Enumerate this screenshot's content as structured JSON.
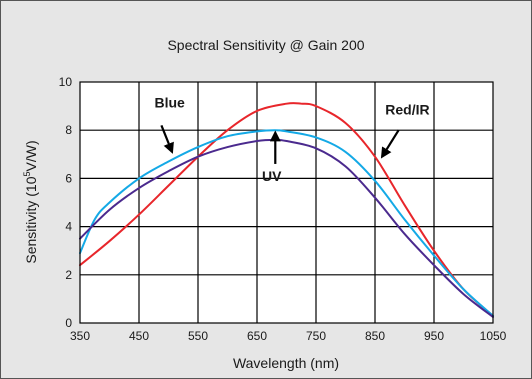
{
  "chart_data": {
    "type": "line",
    "title": "Spectral Sensitivity @ Gain 200",
    "xlabel": "Wavelength  (nm)",
    "ylabel_main": "Sensitivity (10",
    "ylabel_sup": "5",
    "ylabel_tail": "V/W)",
    "xlim": [
      350,
      1050
    ],
    "ylim": [
      0,
      10
    ],
    "x_ticks": [
      "350",
      "450",
      "550",
      "650",
      "750",
      "850",
      "950",
      "1050"
    ],
    "y_ticks": [
      "0",
      "2",
      "4",
      "6",
      "8",
      "10"
    ],
    "grid": true,
    "colors": {
      "background": "#e6e6e6",
      "plot_background": "#ffffff",
      "grid": "#000000"
    },
    "series": [
      {
        "name": "Red/IR",
        "color": "#e8262b",
        "x": [
          350,
          400,
          450,
          500,
          550,
          600,
          650,
          700,
          725,
          750,
          800,
          850,
          900,
          950,
          1000,
          1050
        ],
        "y": [
          2.4,
          3.4,
          4.5,
          5.7,
          6.9,
          8.0,
          8.8,
          9.1,
          9.1,
          9.0,
          8.3,
          6.9,
          4.9,
          3.0,
          1.4,
          0.3
        ]
      },
      {
        "name": "Blue",
        "color": "#14a9e6",
        "x": [
          350,
          375,
          400,
          450,
          500,
          550,
          600,
          650,
          680,
          700,
          750,
          800,
          850,
          900,
          950,
          1000,
          1050
        ],
        "y": [
          2.9,
          4.3,
          5.0,
          6.0,
          6.7,
          7.3,
          7.75,
          7.95,
          8.0,
          7.95,
          7.7,
          7.1,
          5.9,
          4.3,
          2.8,
          1.4,
          0.3
        ]
      },
      {
        "name": "UV",
        "color": "#4b2a8e",
        "x": [
          350,
          400,
          450,
          500,
          550,
          600,
          650,
          680,
          700,
          750,
          800,
          850,
          900,
          950,
          1000,
          1050
        ],
        "y": [
          3.5,
          4.7,
          5.6,
          6.3,
          6.9,
          7.3,
          7.55,
          7.6,
          7.55,
          7.25,
          6.5,
          5.2,
          3.7,
          2.4,
          1.2,
          0.25
        ]
      }
    ],
    "annotations": [
      {
        "text": "Blue",
        "x": 502,
        "y": 8.95,
        "arrow_from": [
          488,
          8.2
        ],
        "arrow_to": [
          506,
          7.1
        ]
      },
      {
        "text": "UV",
        "x": 675,
        "y": 5.9,
        "arrow_from": [
          681,
          6.6
        ],
        "arrow_to": [
          681,
          7.9
        ]
      },
      {
        "text": "Red/IR",
        "x": 905,
        "y": 8.65,
        "arrow_from": [
          890,
          8.0
        ],
        "arrow_to": [
          862,
          6.9
        ]
      }
    ]
  }
}
